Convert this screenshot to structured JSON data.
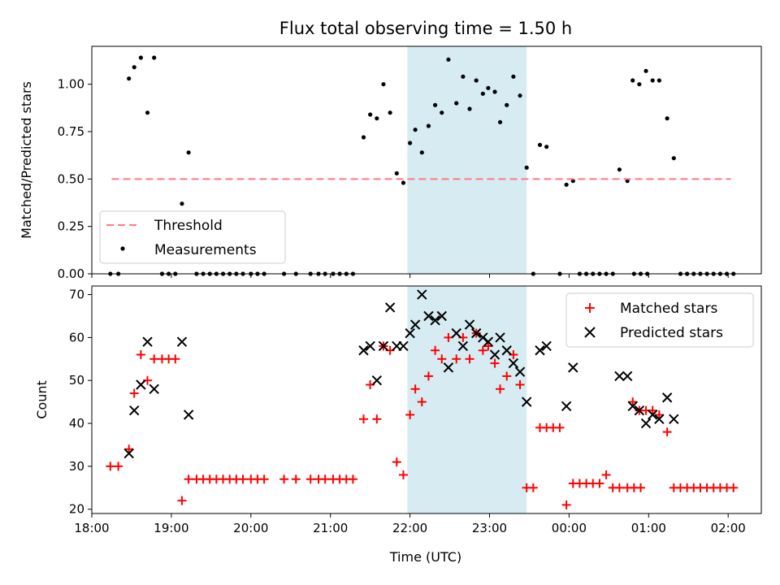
{
  "figure": {
    "title": "Flux total observing time = 1.50 h",
    "xlabel": "Time (UTC)"
  },
  "chart_data": [
    {
      "type": "scatter",
      "panel": "top",
      "ylabel": "Matched/Predicted stars",
      "xlim": [
        "18:00",
        "02:25"
      ],
      "ylim": [
        0,
        1.2
      ],
      "x_ticks": [
        "18:00",
        "19:00",
        "20:00",
        "21:00",
        "22:00",
        "23:00",
        "00:00",
        "01:00",
        "02:00"
      ],
      "y_ticks": [
        "0.00",
        "0.25",
        "0.50",
        "0.75",
        "1.00"
      ],
      "highlight_span": {
        "start": "21:58",
        "end": "23:28",
        "color": "#add8e6"
      },
      "threshold": {
        "name": "Threshold",
        "value": 0.5,
        "from": "18:15",
        "to": "02:02",
        "color": "#ff7b7b"
      },
      "legend": {
        "position": "lower-left",
        "entries": [
          "Threshold",
          "Measurements"
        ]
      },
      "series": [
        {
          "name": "Measurements",
          "marker": "dot",
          "color": "#000000",
          "points": [
            [
              "18:14",
              0
            ],
            [
              "18:20",
              0
            ],
            [
              "18:28",
              1.03
            ],
            [
              "18:32",
              1.09
            ],
            [
              "18:37",
              1.14
            ],
            [
              "18:42",
              0.85
            ],
            [
              "18:47",
              1.14
            ],
            [
              "18:53",
              0
            ],
            [
              "18:58",
              0
            ],
            [
              "19:03",
              0
            ],
            [
              "19:08",
              0.37
            ],
            [
              "19:13",
              0.64
            ],
            [
              "19:19",
              0
            ],
            [
              "19:24",
              0
            ],
            [
              "19:29",
              0
            ],
            [
              "19:34",
              0
            ],
            [
              "19:39",
              0
            ],
            [
              "19:44",
              0
            ],
            [
              "19:49",
              0
            ],
            [
              "19:54",
              0
            ],
            [
              "20:00",
              0
            ],
            [
              "20:05",
              0
            ],
            [
              "20:10",
              0
            ],
            [
              "20:25",
              0
            ],
            [
              "20:34",
              0
            ],
            [
              "20:45",
              0
            ],
            [
              "20:51",
              0
            ],
            [
              "20:56",
              0
            ],
            [
              "21:02",
              0
            ],
            [
              "21:07",
              0
            ],
            [
              "21:12",
              0
            ],
            [
              "21:17",
              0
            ],
            [
              "21:25",
              0.72
            ],
            [
              "21:30",
              0.84
            ],
            [
              "21:35",
              0.82
            ],
            [
              "21:40",
              1.0
            ],
            [
              "21:45",
              0.85
            ],
            [
              "21:50",
              0.53
            ],
            [
              "21:55",
              0.48
            ],
            [
              "22:00",
              0.69
            ],
            [
              "22:04",
              0.76
            ],
            [
              "22:09",
              0.64
            ],
            [
              "22:14",
              0.78
            ],
            [
              "22:19",
              0.89
            ],
            [
              "22:24",
              0.85
            ],
            [
              "22:29",
              1.13
            ],
            [
              "22:35",
              0.9
            ],
            [
              "22:40",
              1.04
            ],
            [
              "22:45",
              0.87
            ],
            [
              "22:50",
              1.02
            ],
            [
              "22:55",
              0.95
            ],
            [
              "22:59",
              0.98
            ],
            [
              "23:04",
              0.96
            ],
            [
              "23:08",
              0.8
            ],
            [
              "23:13",
              0.89
            ],
            [
              "23:18",
              1.04
            ],
            [
              "23:23",
              0.94
            ],
            [
              "23:28",
              0.56
            ],
            [
              "23:33",
              0
            ],
            [
              "23:38",
              0.68
            ],
            [
              "23:43",
              0.67
            ],
            [
              "23:53",
              0
            ],
            [
              "23:58",
              0.47
            ],
            [
              "00:03",
              0.49
            ],
            [
              "00:08",
              0
            ],
            [
              "00:13",
              0
            ],
            [
              "00:18",
              0
            ],
            [
              "00:23",
              0
            ],
            [
              "00:28",
              0
            ],
            [
              "00:33",
              0
            ],
            [
              "00:38",
              0.55
            ],
            [
              "00:44",
              0.49
            ],
            [
              "00:49",
              0
            ],
            [
              "00:54",
              0
            ],
            [
              "00:59",
              0
            ],
            [
              "00:48",
              1.02
            ],
            [
              "00:53",
              1.0
            ],
            [
              "00:58",
              1.07
            ],
            [
              "01:03",
              1.02
            ],
            [
              "01:08",
              1.02
            ],
            [
              "01:14",
              0.82
            ],
            [
              "01:19",
              0.61
            ],
            [
              "01:24",
              0
            ],
            [
              "01:29",
              0
            ],
            [
              "01:34",
              0
            ],
            [
              "01:39",
              0
            ],
            [
              "01:44",
              0
            ],
            [
              "01:49",
              0
            ],
            [
              "01:54",
              0
            ],
            [
              "01:59",
              0
            ],
            [
              "02:04",
              0
            ]
          ]
        }
      ]
    },
    {
      "type": "scatter",
      "panel": "bottom",
      "ylabel": "Count",
      "xlabel": "Time (UTC)",
      "xlim": [
        "18:00",
        "02:25"
      ],
      "ylim": [
        19,
        72
      ],
      "x_ticks": [
        "18:00",
        "19:00",
        "20:00",
        "21:00",
        "22:00",
        "23:00",
        "00:00",
        "01:00",
        "02:00"
      ],
      "y_ticks": [
        "20",
        "30",
        "40",
        "50",
        "60",
        "70"
      ],
      "highlight_span": {
        "start": "21:58",
        "end": "23:28",
        "color": "#add8e6"
      },
      "legend": {
        "position": "top-right",
        "entries": [
          "Matched stars",
          "Predicted stars"
        ]
      },
      "series": [
        {
          "name": "Matched stars",
          "marker": "plus",
          "color": "#ff0000",
          "points": [
            [
              "18:14",
              30
            ],
            [
              "18:20",
              30
            ],
            [
              "18:28",
              34
            ],
            [
              "18:32",
              47
            ],
            [
              "18:37",
              56
            ],
            [
              "18:42",
              50
            ],
            [
              "18:47",
              55
            ],
            [
              "18:53",
              55
            ],
            [
              "18:58",
              55
            ],
            [
              "19:03",
              55
            ],
            [
              "19:08",
              22
            ],
            [
              "19:13",
              27
            ],
            [
              "19:19",
              27
            ],
            [
              "19:24",
              27
            ],
            [
              "19:29",
              27
            ],
            [
              "19:34",
              27
            ],
            [
              "19:39",
              27
            ],
            [
              "19:44",
              27
            ],
            [
              "19:49",
              27
            ],
            [
              "19:54",
              27
            ],
            [
              "20:00",
              27
            ],
            [
              "20:05",
              27
            ],
            [
              "20:10",
              27
            ],
            [
              "20:25",
              27
            ],
            [
              "20:34",
              27
            ],
            [
              "20:45",
              27
            ],
            [
              "20:51",
              27
            ],
            [
              "20:56",
              27
            ],
            [
              "21:02",
              27
            ],
            [
              "21:07",
              27
            ],
            [
              "21:12",
              27
            ],
            [
              "21:17",
              27
            ],
            [
              "21:25",
              41
            ],
            [
              "21:30",
              49
            ],
            [
              "21:35",
              41
            ],
            [
              "21:40",
              58
            ],
            [
              "21:45",
              57
            ],
            [
              "21:50",
              31
            ],
            [
              "21:55",
              28
            ],
            [
              "22:00",
              42
            ],
            [
              "22:04",
              48
            ],
            [
              "22:09",
              45
            ],
            [
              "22:14",
              51
            ],
            [
              "22:19",
              57
            ],
            [
              "22:24",
              55
            ],
            [
              "22:29",
              60
            ],
            [
              "22:35",
              55
            ],
            [
              "22:40",
              60
            ],
            [
              "22:45",
              55
            ],
            [
              "22:50",
              61
            ],
            [
              "22:55",
              57
            ],
            [
              "22:59",
              58
            ],
            [
              "23:04",
              54
            ],
            [
              "23:08",
              48
            ],
            [
              "23:13",
              51
            ],
            [
              "23:18",
              56
            ],
            [
              "23:23",
              49
            ],
            [
              "23:28",
              25
            ],
            [
              "23:33",
              25
            ],
            [
              "23:38",
              39
            ],
            [
              "23:43",
              39
            ],
            [
              "23:48",
              39
            ],
            [
              "23:53",
              39
            ],
            [
              "23:58",
              21
            ],
            [
              "00:03",
              26
            ],
            [
              "00:08",
              26
            ],
            [
              "00:13",
              26
            ],
            [
              "00:18",
              26
            ],
            [
              "00:23",
              26
            ],
            [
              "00:28",
              28
            ],
            [
              "00:33",
              25
            ],
            [
              "00:38",
              25
            ],
            [
              "00:44",
              25
            ],
            [
              "00:49",
              25
            ],
            [
              "00:54",
              25
            ],
            [
              "00:48",
              45
            ],
            [
              "00:53",
              43
            ],
            [
              "00:58",
              43
            ],
            [
              "01:03",
              43
            ],
            [
              "01:08",
              42
            ],
            [
              "01:14",
              38
            ],
            [
              "01:19",
              25
            ],
            [
              "01:24",
              25
            ],
            [
              "01:29",
              25
            ],
            [
              "01:34",
              25
            ],
            [
              "01:39",
              25
            ],
            [
              "01:44",
              25
            ],
            [
              "01:49",
              25
            ],
            [
              "01:54",
              25
            ],
            [
              "01:59",
              25
            ],
            [
              "02:04",
              25
            ]
          ]
        },
        {
          "name": "Predicted stars",
          "marker": "x",
          "color": "#000000",
          "points": [
            [
              "18:28",
              33
            ],
            [
              "18:32",
              43
            ],
            [
              "18:37",
              49
            ],
            [
              "18:42",
              59
            ],
            [
              "18:47",
              48
            ],
            [
              "19:08",
              59
            ],
            [
              "19:13",
              42
            ],
            [
              "21:25",
              57
            ],
            [
              "21:30",
              58
            ],
            [
              "21:35",
              50
            ],
            [
              "21:40",
              58
            ],
            [
              "21:45",
              67
            ],
            [
              "21:50",
              58
            ],
            [
              "21:55",
              58
            ],
            [
              "22:00",
              61
            ],
            [
              "22:04",
              63
            ],
            [
              "22:09",
              70
            ],
            [
              "22:14",
              65
            ],
            [
              "22:19",
              64
            ],
            [
              "22:24",
              65
            ],
            [
              "22:29",
              53
            ],
            [
              "22:35",
              61
            ],
            [
              "22:40",
              58
            ],
            [
              "22:45",
              63
            ],
            [
              "22:50",
              61
            ],
            [
              "22:55",
              60
            ],
            [
              "22:59",
              59
            ],
            [
              "23:04",
              56
            ],
            [
              "23:08",
              60
            ],
            [
              "23:13",
              57
            ],
            [
              "23:18",
              54
            ],
            [
              "23:23",
              52
            ],
            [
              "23:28",
              45
            ],
            [
              "23:38",
              57
            ],
            [
              "23:43",
              58
            ],
            [
              "23:58",
              44
            ],
            [
              "00:03",
              53
            ],
            [
              "00:38",
              51
            ],
            [
              "00:44",
              51
            ],
            [
              "00:48",
              44
            ],
            [
              "00:53",
              43
            ],
            [
              "00:58",
              40
            ],
            [
              "01:03",
              42
            ],
            [
              "01:08",
              41
            ],
            [
              "01:14",
              46
            ],
            [
              "01:19",
              41
            ]
          ]
        }
      ]
    }
  ]
}
